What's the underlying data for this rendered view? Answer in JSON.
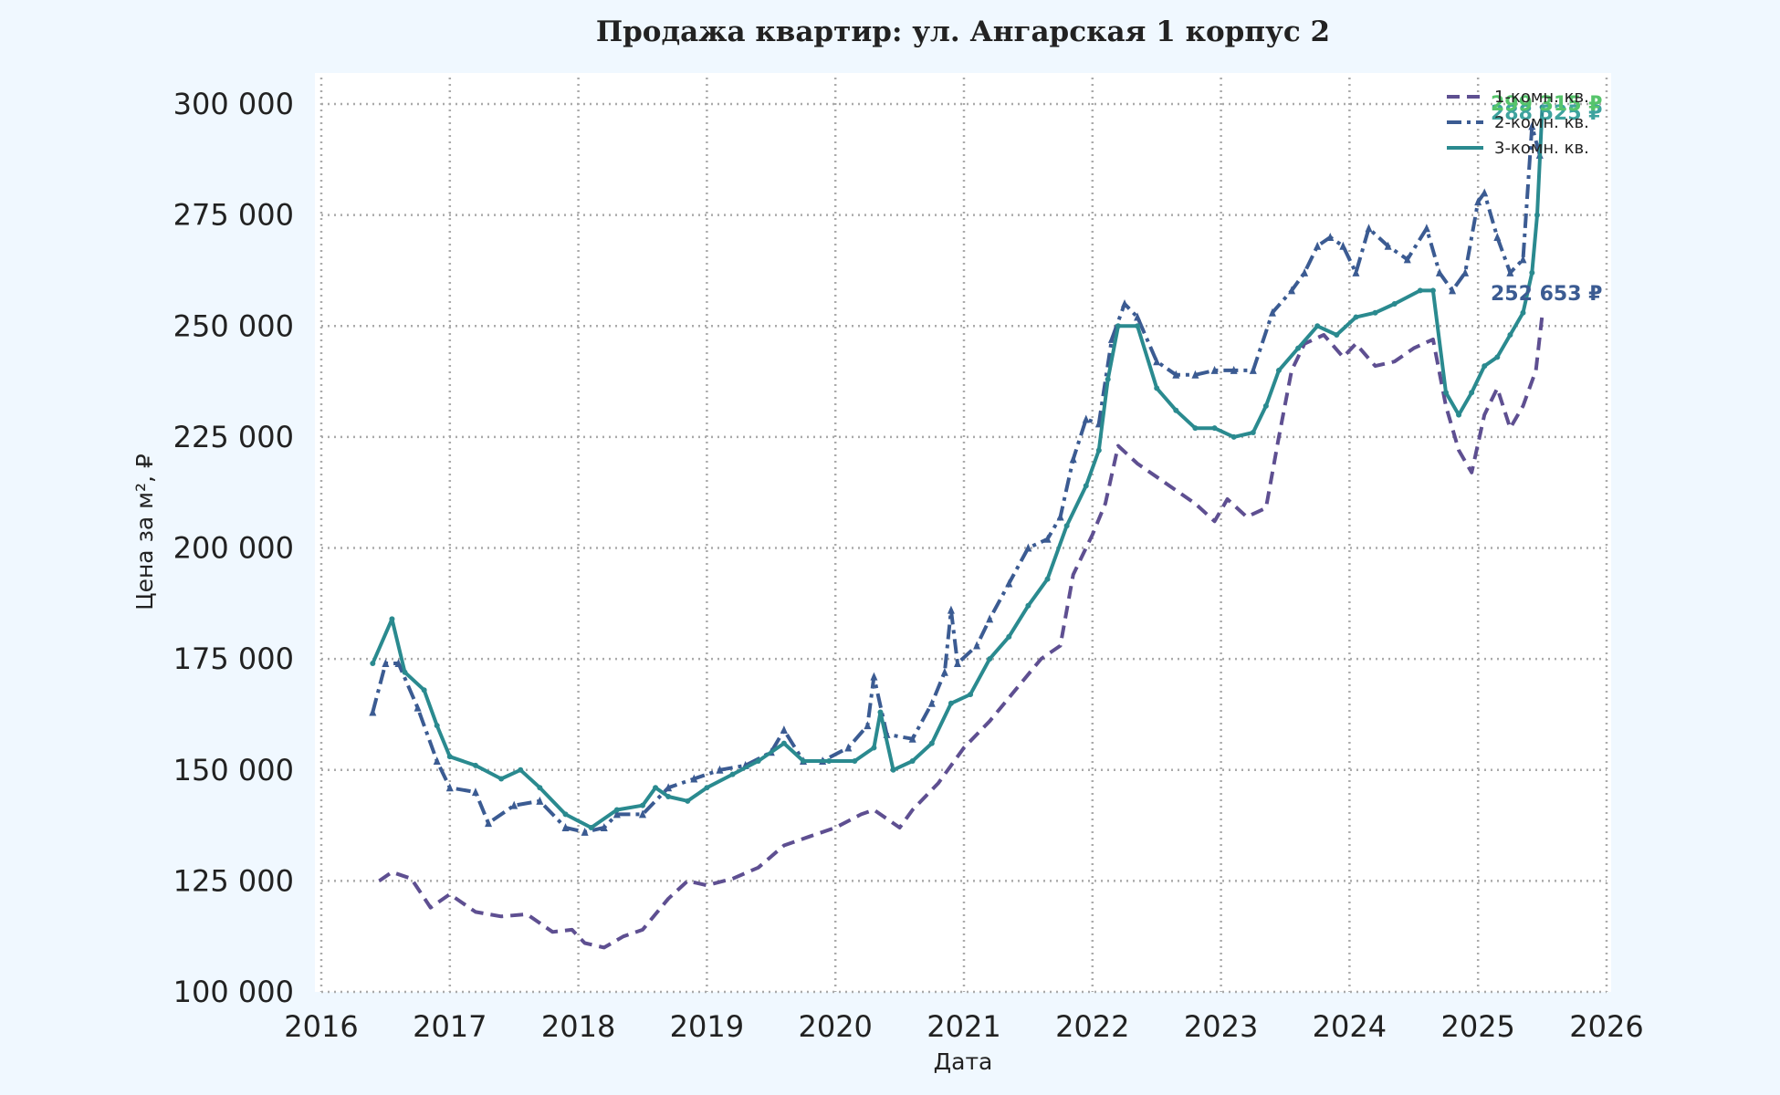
{
  "chart_data": {
    "type": "line",
    "title": "Продажа квартир: ул. Ангарская 1 корпус 2",
    "xlabel": "Дата",
    "ylabel": "Цена за м², ₽",
    "xlim": [
      2016,
      2026
    ],
    "ylim": [
      100000,
      307000
    ],
    "grid": true,
    "legend_position": "top-right",
    "x_ticks": [
      "2016",
      "2017",
      "2018",
      "2019",
      "2020",
      "2021",
      "2022",
      "2023",
      "2024",
      "2025",
      "2026"
    ],
    "y_ticks": [
      "100 000",
      "125 000",
      "150 000",
      "175 000",
      "200 000",
      "225 000",
      "250 000",
      "275 000",
      "300 000"
    ],
    "series": [
      {
        "name": "1-комн. кв.",
        "color": "#5e4f91",
        "style": "dashed",
        "end_label": "252 653 ₽",
        "points": [
          [
            2016.45,
            125000
          ],
          [
            2016.55,
            127000
          ],
          [
            2016.7,
            125500
          ],
          [
            2016.85,
            119000
          ],
          [
            2017.0,
            122000
          ],
          [
            2017.2,
            118000
          ],
          [
            2017.4,
            117000
          ],
          [
            2017.6,
            117500
          ],
          [
            2017.8,
            113500
          ],
          [
            2017.95,
            114000
          ],
          [
            2018.05,
            111000
          ],
          [
            2018.2,
            110000
          ],
          [
            2018.35,
            112500
          ],
          [
            2018.5,
            114000
          ],
          [
            2018.7,
            121000
          ],
          [
            2018.85,
            125000
          ],
          [
            2019.0,
            124000
          ],
          [
            2019.2,
            125500
          ],
          [
            2019.4,
            128000
          ],
          [
            2019.6,
            133000
          ],
          [
            2019.8,
            135000
          ],
          [
            2020.0,
            137000
          ],
          [
            2020.2,
            140000
          ],
          [
            2020.3,
            141000
          ],
          [
            2020.5,
            137000
          ],
          [
            2020.6,
            141000
          ],
          [
            2020.8,
            147000
          ],
          [
            2021.0,
            155000
          ],
          [
            2021.2,
            161000
          ],
          [
            2021.4,
            168000
          ],
          [
            2021.6,
            175000
          ],
          [
            2021.75,
            178000
          ],
          [
            2021.85,
            194000
          ],
          [
            2022.0,
            203000
          ],
          [
            2022.1,
            210000
          ],
          [
            2022.2,
            223000
          ],
          [
            2022.35,
            219000
          ],
          [
            2022.5,
            216000
          ],
          [
            2022.65,
            213000
          ],
          [
            2022.8,
            210000
          ],
          [
            2022.95,
            206000
          ],
          [
            2023.05,
            211000
          ],
          [
            2023.2,
            207000
          ],
          [
            2023.35,
            209000
          ],
          [
            2023.45,
            225000
          ],
          [
            2023.55,
            240000
          ],
          [
            2023.65,
            246000
          ],
          [
            2023.8,
            248000
          ],
          [
            2023.95,
            243000
          ],
          [
            2024.05,
            246000
          ],
          [
            2024.2,
            241000
          ],
          [
            2024.35,
            242000
          ],
          [
            2024.5,
            245000
          ],
          [
            2024.65,
            247000
          ],
          [
            2024.75,
            232000
          ],
          [
            2024.85,
            222000
          ],
          [
            2024.95,
            217000
          ],
          [
            2025.05,
            230000
          ],
          [
            2025.15,
            236000
          ],
          [
            2025.25,
            227000
          ],
          [
            2025.35,
            232000
          ],
          [
            2025.45,
            240000
          ],
          [
            2025.5,
            252653
          ]
        ]
      },
      {
        "name": "2-комн. кв.",
        "color": "#3b5b92",
        "style": "dashdot",
        "end_label": "288 525 ₽",
        "points": [
          [
            2016.4,
            163000
          ],
          [
            2016.5,
            174000
          ],
          [
            2016.6,
            174000
          ],
          [
            2016.75,
            164000
          ],
          [
            2016.9,
            152000
          ],
          [
            2017.0,
            146000
          ],
          [
            2017.2,
            145000
          ],
          [
            2017.3,
            138000
          ],
          [
            2017.5,
            142000
          ],
          [
            2017.7,
            143000
          ],
          [
            2017.9,
            137000
          ],
          [
            2018.05,
            136000
          ],
          [
            2018.2,
            137000
          ],
          [
            2018.3,
            140000
          ],
          [
            2018.5,
            140000
          ],
          [
            2018.7,
            146000
          ],
          [
            2018.9,
            148000
          ],
          [
            2019.1,
            150000
          ],
          [
            2019.3,
            151000
          ],
          [
            2019.5,
            154000
          ],
          [
            2019.6,
            159000
          ],
          [
            2019.75,
            152000
          ],
          [
            2019.9,
            152000
          ],
          [
            2020.1,
            155000
          ],
          [
            2020.25,
            160000
          ],
          [
            2020.3,
            171000
          ],
          [
            2020.4,
            158000
          ],
          [
            2020.6,
            157000
          ],
          [
            2020.75,
            165000
          ],
          [
            2020.85,
            172000
          ],
          [
            2020.9,
            186000
          ],
          [
            2020.95,
            174000
          ],
          [
            2021.1,
            178000
          ],
          [
            2021.2,
            184000
          ],
          [
            2021.35,
            192000
          ],
          [
            2021.5,
            200000
          ],
          [
            2021.65,
            202000
          ],
          [
            2021.75,
            207000
          ],
          [
            2021.85,
            220000
          ],
          [
            2021.95,
            229000
          ],
          [
            2022.05,
            228000
          ],
          [
            2022.15,
            247000
          ],
          [
            2022.25,
            255000
          ],
          [
            2022.35,
            252000
          ],
          [
            2022.5,
            242000
          ],
          [
            2022.65,
            239000
          ],
          [
            2022.8,
            239000
          ],
          [
            2022.95,
            240000
          ],
          [
            2023.1,
            240000
          ],
          [
            2023.25,
            240000
          ],
          [
            2023.4,
            253000
          ],
          [
            2023.55,
            258000
          ],
          [
            2023.65,
            262000
          ],
          [
            2023.75,
            268000
          ],
          [
            2023.85,
            270000
          ],
          [
            2023.95,
            268000
          ],
          [
            2024.05,
            262000
          ],
          [
            2024.15,
            272000
          ],
          [
            2024.3,
            268000
          ],
          [
            2024.45,
            265000
          ],
          [
            2024.6,
            272000
          ],
          [
            2024.7,
            262000
          ],
          [
            2024.8,
            258000
          ],
          [
            2024.9,
            262000
          ],
          [
            2025.0,
            278000
          ],
          [
            2025.05,
            280000
          ],
          [
            2025.15,
            270000
          ],
          [
            2025.25,
            262000
          ],
          [
            2025.35,
            265000
          ],
          [
            2025.42,
            295000
          ],
          [
            2025.48,
            288525
          ]
        ]
      },
      {
        "name": "3-комн. кв.",
        "color": "#2a8a8f",
        "style": "solid",
        "end_label": "299 315 ₽",
        "points": [
          [
            2016.4,
            174000
          ],
          [
            2016.55,
            184000
          ],
          [
            2016.65,
            172000
          ],
          [
            2016.8,
            168000
          ],
          [
            2016.9,
            160000
          ],
          [
            2017.0,
            153000
          ],
          [
            2017.2,
            151000
          ],
          [
            2017.4,
            148000
          ],
          [
            2017.55,
            150000
          ],
          [
            2017.7,
            146000
          ],
          [
            2017.9,
            140000
          ],
          [
            2018.1,
            137000
          ],
          [
            2018.3,
            141000
          ],
          [
            2018.5,
            142000
          ],
          [
            2018.6,
            146000
          ],
          [
            2018.7,
            144000
          ],
          [
            2018.85,
            143000
          ],
          [
            2019.0,
            146000
          ],
          [
            2019.2,
            149000
          ],
          [
            2019.4,
            152000
          ],
          [
            2019.6,
            156000
          ],
          [
            2019.75,
            152000
          ],
          [
            2019.95,
            152000
          ],
          [
            2020.15,
            152000
          ],
          [
            2020.3,
            155000
          ],
          [
            2020.35,
            163000
          ],
          [
            2020.45,
            150000
          ],
          [
            2020.6,
            152000
          ],
          [
            2020.75,
            156000
          ],
          [
            2020.9,
            165000
          ],
          [
            2021.05,
            167000
          ],
          [
            2021.2,
            175000
          ],
          [
            2021.35,
            180000
          ],
          [
            2021.5,
            187000
          ],
          [
            2021.65,
            193000
          ],
          [
            2021.8,
            205000
          ],
          [
            2021.95,
            214000
          ],
          [
            2022.05,
            222000
          ],
          [
            2022.12,
            238000
          ],
          [
            2022.2,
            250000
          ],
          [
            2022.35,
            250000
          ],
          [
            2022.5,
            236000
          ],
          [
            2022.65,
            231000
          ],
          [
            2022.8,
            227000
          ],
          [
            2022.95,
            227000
          ],
          [
            2023.1,
            225000
          ],
          [
            2023.25,
            226000
          ],
          [
            2023.35,
            232000
          ],
          [
            2023.45,
            240000
          ],
          [
            2023.6,
            245000
          ],
          [
            2023.75,
            250000
          ],
          [
            2023.9,
            248000
          ],
          [
            2024.05,
            252000
          ],
          [
            2024.2,
            253000
          ],
          [
            2024.35,
            255000
          ],
          [
            2024.55,
            258000
          ],
          [
            2024.65,
            258000
          ],
          [
            2024.75,
            235000
          ],
          [
            2024.85,
            230000
          ],
          [
            2024.95,
            235000
          ],
          [
            2025.05,
            241000
          ],
          [
            2025.15,
            243000
          ],
          [
            2025.25,
            248000
          ],
          [
            2025.35,
            253000
          ],
          [
            2025.42,
            262000
          ],
          [
            2025.46,
            275000
          ],
          [
            2025.5,
            299315
          ]
        ]
      }
    ],
    "end_label_colors": [
      "#3b5b92",
      "#3ea39e",
      "#56c46b"
    ]
  }
}
